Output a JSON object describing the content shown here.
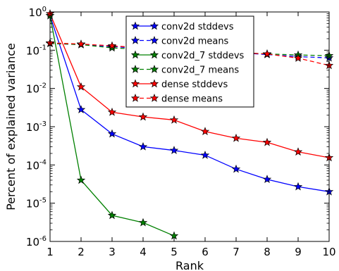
{
  "chart_data": {
    "type": "line",
    "title": "",
    "xlabel": "Rank",
    "ylabel": "Percent of explained variance",
    "xlim": [
      1,
      10
    ],
    "ylim": [
      1e-06,
      1
    ],
    "yscale": "log",
    "x_ticks": [
      "1",
      "2",
      "3",
      "4",
      "5",
      "6",
      "7",
      "8",
      "9",
      "10"
    ],
    "y_ticks": [
      {
        "base": "10",
        "exp": "-6",
        "value": 1e-06
      },
      {
        "base": "10",
        "exp": "-5",
        "value": 1e-05
      },
      {
        "base": "10",
        "exp": "-4",
        "value": 0.0001
      },
      {
        "base": "10",
        "exp": "-3",
        "value": 0.001
      },
      {
        "base": "10",
        "exp": "-2",
        "value": 0.01
      },
      {
        "base": "10",
        "exp": "-1",
        "value": 0.1
      },
      {
        "base": "10",
        "exp": "0",
        "value": 1
      }
    ],
    "grid": false,
    "legend_position": "top-center",
    "series": [
      {
        "name": "conv2d stddevs",
        "color": "#0000ff",
        "linestyle": "solid",
        "marker": "star",
        "x": [
          1,
          2,
          3,
          4,
          5,
          6,
          7,
          8,
          9,
          10
        ],
        "y": [
          0.8,
          0.0028,
          0.00065,
          0.0003,
          0.00024,
          0.00018,
          7.8e-05,
          4.2e-05,
          2.7e-05,
          2e-05
        ]
      },
      {
        "name": "conv2d means",
        "color": "#0000ff",
        "linestyle": "dashed",
        "marker": "star",
        "x": [
          1,
          2,
          3,
          4,
          5,
          6,
          7,
          8,
          9,
          10
        ],
        "y": [
          0.15,
          0.14,
          0.125,
          0.11,
          0.1,
          0.094,
          0.086,
          0.077,
          0.068,
          0.063
        ]
      },
      {
        "name": "conv2d_7 stddevs",
        "color": "#008000",
        "linestyle": "solid",
        "marker": "star",
        "x": [
          1,
          2,
          3,
          4,
          5
        ],
        "y": [
          0.8,
          4e-05,
          4.8e-06,
          3.1e-06,
          1.4e-06
        ]
      },
      {
        "name": "conv2d_7 means",
        "color": "#008000",
        "linestyle": "dashed",
        "marker": "star",
        "x": [
          1,
          2,
          3,
          4,
          5,
          6,
          7,
          8,
          9,
          10
        ],
        "y": [
          0.15,
          0.14,
          0.115,
          0.105,
          0.1,
          0.094,
          0.088,
          0.08,
          0.075,
          0.072
        ]
      },
      {
        "name": "dense stddevs",
        "color": "#ff0000",
        "linestyle": "solid",
        "marker": "star",
        "x": [
          1,
          2,
          3,
          4,
          5,
          6,
          7,
          8,
          9,
          10
        ],
        "y": [
          0.9,
          0.011,
          0.0024,
          0.0018,
          0.0015,
          0.00075,
          0.0005,
          0.00039,
          0.00022,
          0.000155
        ]
      },
      {
        "name": "dense means",
        "color": "#ff0000",
        "linestyle": "dashed",
        "marker": "star",
        "x": [
          1,
          2,
          3,
          4,
          5,
          6,
          7,
          8,
          9,
          10
        ],
        "y": [
          0.155,
          0.145,
          0.13,
          0.115,
          0.1,
          0.093,
          0.086,
          0.08,
          0.062,
          0.04
        ]
      }
    ]
  }
}
